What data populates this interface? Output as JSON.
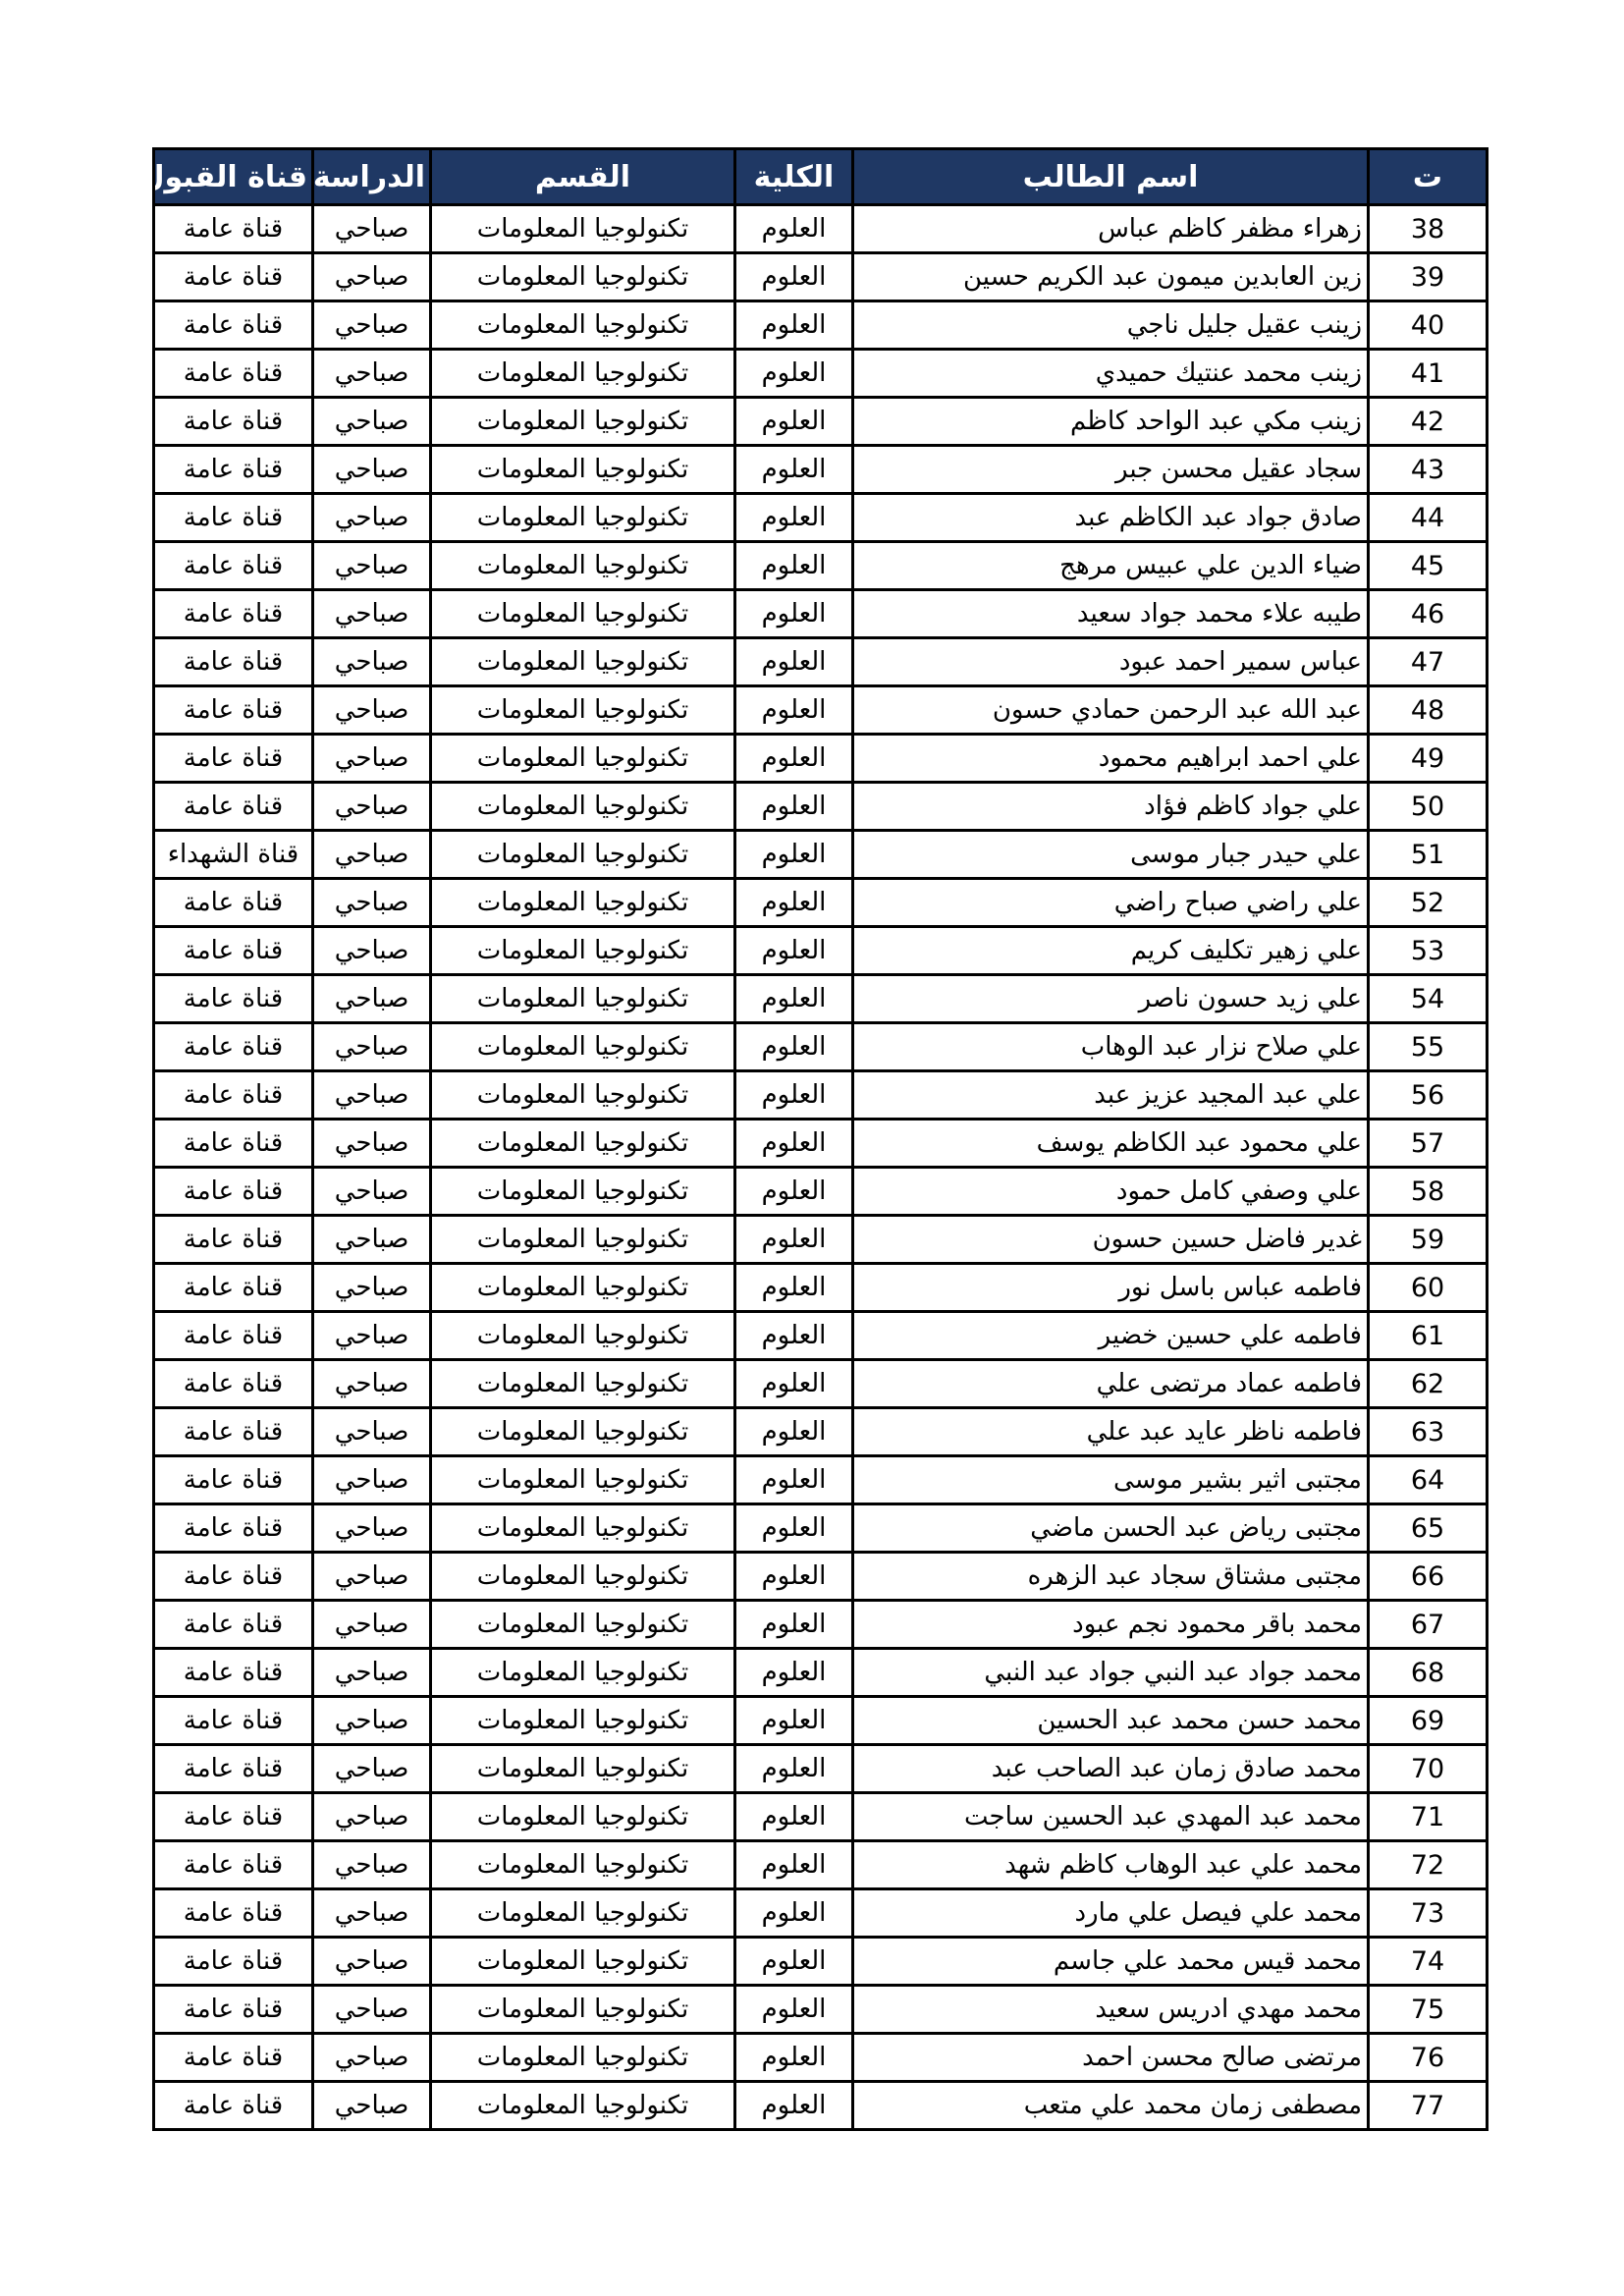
{
  "colors": {
    "header_bg": "#1f3864",
    "header_text": "#ffffff",
    "border": "#000000",
    "row_bg": "#ffffff",
    "body_text": "#000000"
  },
  "table": {
    "columns": [
      {
        "key": "serial",
        "label": "ت"
      },
      {
        "key": "name",
        "label": "اسم الطالب"
      },
      {
        "key": "college",
        "label": "الكلية"
      },
      {
        "key": "department",
        "label": "القسم"
      },
      {
        "key": "study",
        "label": "الدراسة"
      },
      {
        "key": "channel",
        "label": "قناة القبول"
      }
    ],
    "rows": [
      {
        "serial": "38",
        "name": "زهراء مظفر كاظم عباس",
        "college": "العلوم",
        "department": "تكنولوجيا المعلومات",
        "study": "صباحي",
        "channel": "قناة عامة"
      },
      {
        "serial": "39",
        "name": "زين العابدين ميمون عبد الكريم حسين",
        "college": "العلوم",
        "department": "تكنولوجيا المعلومات",
        "study": "صباحي",
        "channel": "قناة عامة"
      },
      {
        "serial": "40",
        "name": "زينب عقيل جليل ناجي",
        "college": "العلوم",
        "department": "تكنولوجيا المعلومات",
        "study": "صباحي",
        "channel": "قناة عامة"
      },
      {
        "serial": "41",
        "name": "زينب محمد عنتيك حميدي",
        "college": "العلوم",
        "department": "تكنولوجيا المعلومات",
        "study": "صباحي",
        "channel": "قناة عامة"
      },
      {
        "serial": "42",
        "name": "زينب مكي عبد الواحد كاظم",
        "college": "العلوم",
        "department": "تكنولوجيا المعلومات",
        "study": "صباحي",
        "channel": "قناة عامة"
      },
      {
        "serial": "43",
        "name": "سجاد عقيل محسن جبر",
        "college": "العلوم",
        "department": "تكنولوجيا المعلومات",
        "study": "صباحي",
        "channel": "قناة عامة"
      },
      {
        "serial": "44",
        "name": "صادق جواد عبد الكاظم عبد",
        "college": "العلوم",
        "department": "تكنولوجيا المعلومات",
        "study": "صباحي",
        "channel": "قناة عامة"
      },
      {
        "serial": "45",
        "name": "ضياء الدين علي عبيس مرهج",
        "college": "العلوم",
        "department": "تكنولوجيا المعلومات",
        "study": "صباحي",
        "channel": "قناة عامة"
      },
      {
        "serial": "46",
        "name": "طيبه علاء محمد جواد سعيد",
        "college": "العلوم",
        "department": "تكنولوجيا المعلومات",
        "study": "صباحي",
        "channel": "قناة عامة"
      },
      {
        "serial": "47",
        "name": "عباس سمير احمد عبود",
        "college": "العلوم",
        "department": "تكنولوجيا المعلومات",
        "study": "صباحي",
        "channel": "قناة عامة"
      },
      {
        "serial": "48",
        "name": "عبد الله عبد الرحمن حمادي حسون",
        "college": "العلوم",
        "department": "تكنولوجيا المعلومات",
        "study": "صباحي",
        "channel": "قناة عامة"
      },
      {
        "serial": "49",
        "name": "علي احمد ابراهيم محمود",
        "college": "العلوم",
        "department": "تكنولوجيا المعلومات",
        "study": "صباحي",
        "channel": "قناة عامة"
      },
      {
        "serial": "50",
        "name": "علي جواد كاظم فؤاد",
        "college": "العلوم",
        "department": "تكنولوجيا المعلومات",
        "study": "صباحي",
        "channel": "قناة عامة"
      },
      {
        "serial": "51",
        "name": "علي حيدر جبار موسى",
        "college": "العلوم",
        "department": "تكنولوجيا المعلومات",
        "study": "صباحي",
        "channel": "قناة الشهداء"
      },
      {
        "serial": "52",
        "name": "علي راضي صباح راضي",
        "college": "العلوم",
        "department": "تكنولوجيا المعلومات",
        "study": "صباحي",
        "channel": "قناة عامة"
      },
      {
        "serial": "53",
        "name": "علي زهير تكليف كريم",
        "college": "العلوم",
        "department": "تكنولوجيا المعلومات",
        "study": "صباحي",
        "channel": "قناة عامة"
      },
      {
        "serial": "54",
        "name": "علي زيد حسون ناصر",
        "college": "العلوم",
        "department": "تكنولوجيا المعلومات",
        "study": "صباحي",
        "channel": "قناة عامة"
      },
      {
        "serial": "55",
        "name": "علي صلاح نزار عبد الوهاب",
        "college": "العلوم",
        "department": "تكنولوجيا المعلومات",
        "study": "صباحي",
        "channel": "قناة عامة"
      },
      {
        "serial": "56",
        "name": "علي عبد المجيد عزيز عبد",
        "college": "العلوم",
        "department": "تكنولوجيا المعلومات",
        "study": "صباحي",
        "channel": "قناة عامة"
      },
      {
        "serial": "57",
        "name": "علي محمود عبد الكاظم يوسف",
        "college": "العلوم",
        "department": "تكنولوجيا المعلومات",
        "study": "صباحي",
        "channel": "قناة عامة"
      },
      {
        "serial": "58",
        "name": "علي وصفي كامل حمود",
        "college": "العلوم",
        "department": "تكنولوجيا المعلومات",
        "study": "صباحي",
        "channel": "قناة عامة"
      },
      {
        "serial": "59",
        "name": "غدير فاضل حسين حسون",
        "college": "العلوم",
        "department": "تكنولوجيا المعلومات",
        "study": "صباحي",
        "channel": "قناة عامة"
      },
      {
        "serial": "60",
        "name": "فاطمه عباس باسل نور",
        "college": "العلوم",
        "department": "تكنولوجيا المعلومات",
        "study": "صباحي",
        "channel": "قناة عامة"
      },
      {
        "serial": "61",
        "name": "فاطمه علي حسين خضير",
        "college": "العلوم",
        "department": "تكنولوجيا المعلومات",
        "study": "صباحي",
        "channel": "قناة عامة"
      },
      {
        "serial": "62",
        "name": "فاطمه عماد مرتضى علي",
        "college": "العلوم",
        "department": "تكنولوجيا المعلومات",
        "study": "صباحي",
        "channel": "قناة عامة"
      },
      {
        "serial": "63",
        "name": "فاطمه ناظر عايد عبد علي",
        "college": "العلوم",
        "department": "تكنولوجيا المعلومات",
        "study": "صباحي",
        "channel": "قناة عامة"
      },
      {
        "serial": "64",
        "name": "مجتبى اثير بشير موسى",
        "college": "العلوم",
        "department": "تكنولوجيا المعلومات",
        "study": "صباحي",
        "channel": "قناة عامة"
      },
      {
        "serial": "65",
        "name": "مجتبى رياض عبد الحسن ماضي",
        "college": "العلوم",
        "department": "تكنولوجيا المعلومات",
        "study": "صباحي",
        "channel": "قناة عامة"
      },
      {
        "serial": "66",
        "name": "مجتبى مشتاق سجاد عبد الزهره",
        "college": "العلوم",
        "department": "تكنولوجيا المعلومات",
        "study": "صباحي",
        "channel": "قناة عامة"
      },
      {
        "serial": "67",
        "name": "محمد باقر محمود نجم عبود",
        "college": "العلوم",
        "department": "تكنولوجيا المعلومات",
        "study": "صباحي",
        "channel": "قناة عامة"
      },
      {
        "serial": "68",
        "name": "محمد جواد عبد النبي جواد عبد النبي",
        "college": "العلوم",
        "department": "تكنولوجيا المعلومات",
        "study": "صباحي",
        "channel": "قناة عامة"
      },
      {
        "serial": "69",
        "name": "محمد حسن محمد عبد الحسين",
        "college": "العلوم",
        "department": "تكنولوجيا المعلومات",
        "study": "صباحي",
        "channel": "قناة عامة"
      },
      {
        "serial": "70",
        "name": "محمد صادق زمان عبد الصاحب عبد",
        "college": "العلوم",
        "department": "تكنولوجيا المعلومات",
        "study": "صباحي",
        "channel": "قناة عامة"
      },
      {
        "serial": "71",
        "name": "محمد عبد المهدي عبد الحسين ساجت",
        "college": "العلوم",
        "department": "تكنولوجيا المعلومات",
        "study": "صباحي",
        "channel": "قناة عامة"
      },
      {
        "serial": "72",
        "name": "محمد علي عبد الوهاب كاظم شهد",
        "college": "العلوم",
        "department": "تكنولوجيا المعلومات",
        "study": "صباحي",
        "channel": "قناة عامة"
      },
      {
        "serial": "73",
        "name": "محمد علي فيصل علي مارد",
        "college": "العلوم",
        "department": "تكنولوجيا المعلومات",
        "study": "صباحي",
        "channel": "قناة عامة"
      },
      {
        "serial": "74",
        "name": "محمد قيس محمد علي جاسم",
        "college": "العلوم",
        "department": "تكنولوجيا المعلومات",
        "study": "صباحي",
        "channel": "قناة عامة"
      },
      {
        "serial": "75",
        "name": "محمد مهدي ادريس سعيد",
        "college": "العلوم",
        "department": "تكنولوجيا المعلومات",
        "study": "صباحي",
        "channel": "قناة عامة"
      },
      {
        "serial": "76",
        "name": "مرتضى صالح محسن احمد",
        "college": "العلوم",
        "department": "تكنولوجيا المعلومات",
        "study": "صباحي",
        "channel": "قناة عامة"
      },
      {
        "serial": "77",
        "name": "مصطفى زمان محمد علي متعب",
        "college": "العلوم",
        "department": "تكنولوجيا المعلومات",
        "study": "صباحي",
        "channel": "قناة عامة"
      }
    ]
  }
}
